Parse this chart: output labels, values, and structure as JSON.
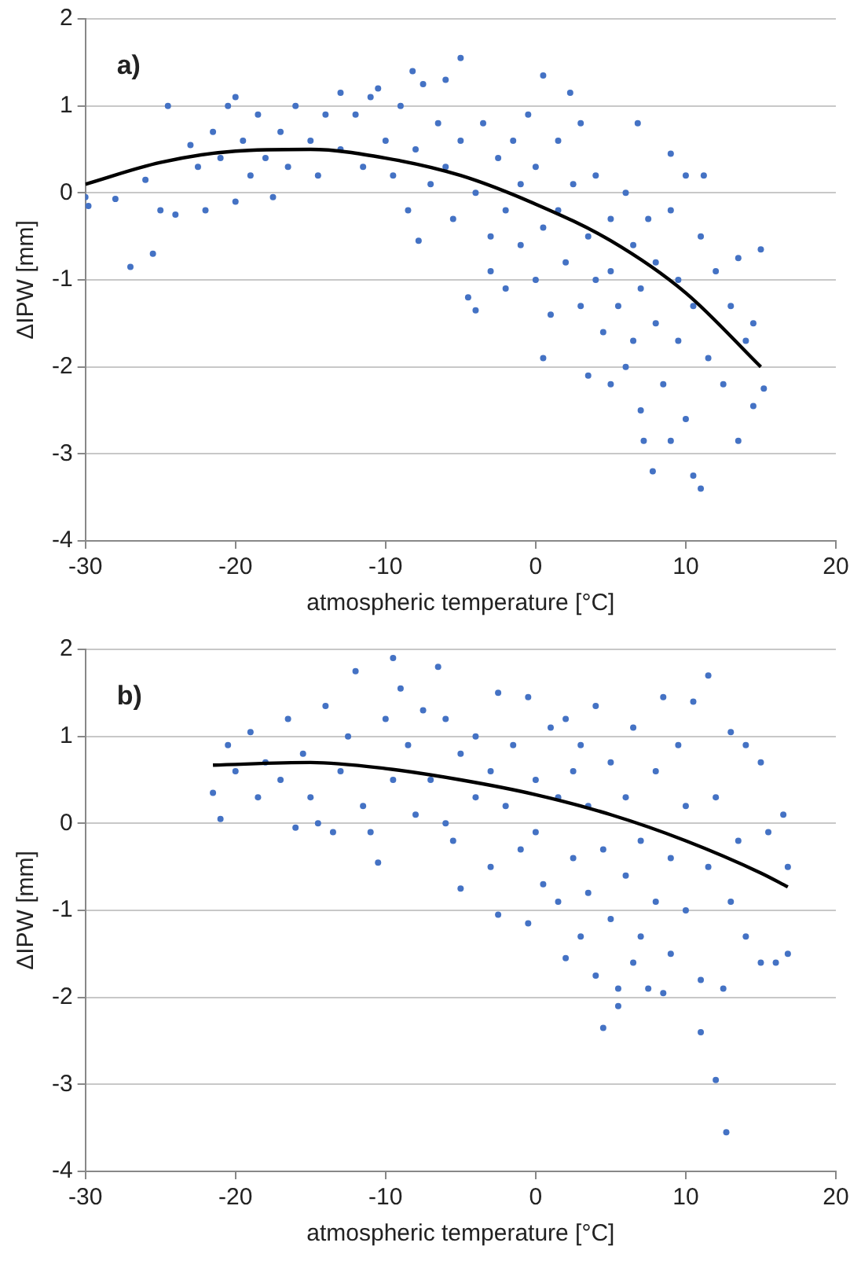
{
  "chart_data": [
    {
      "type": "scatter",
      "xlabel": "atmospheric temperature [°C]",
      "ylabel": "ΔIPW [mm]",
      "annotations": [
        "a)"
      ],
      "xlim": [
        -30,
        20
      ],
      "xticks": [
        -30,
        -20,
        -10,
        0,
        10,
        20
      ],
      "ylim": [
        -4,
        2
      ],
      "yticks": [
        -4,
        -3,
        -2,
        -1,
        0,
        1,
        2
      ],
      "grid": "y",
      "legend": false,
      "series": [
        {
          "marker": "circle",
          "color": "#4472c4",
          "x": [
            -30,
            -29.8,
            -28,
            -27,
            -26,
            -25.5,
            -25,
            -24.5,
            -24,
            -23,
            -22.5,
            -22,
            -21.5,
            -21,
            -20.5,
            -20,
            -20,
            -19.5,
            -19,
            -18.5,
            -18,
            -17.5,
            -17,
            -16.5,
            -16,
            -15,
            -14.5,
            -14,
            -13,
            -13,
            -12,
            -11.5,
            -11,
            -10.5,
            -10,
            -9.5,
            -9,
            -8.5,
            -8.2,
            -8,
            -7.8,
            -7.5,
            -7,
            -6.5,
            -6,
            -6,
            -5.5,
            -5,
            -5,
            -4.5,
            -4,
            -4,
            -3.5,
            -3,
            -3,
            -2.5,
            -2,
            -2,
            -1.5,
            -1,
            -1,
            -0.5,
            0,
            0,
            0.5,
            0.5,
            0.5,
            1,
            1.5,
            1.5,
            2,
            2.3,
            2.5,
            3,
            3,
            3.5,
            3.5,
            4,
            4,
            4.5,
            5,
            5,
            5,
            5.5,
            6,
            6,
            6.5,
            6.5,
            6.8,
            7,
            7,
            7.2,
            7.5,
            7.8,
            8,
            8,
            8.5,
            9,
            9,
            9,
            9.5,
            9.5,
            10,
            10,
            10.5,
            10.5,
            11,
            11,
            11.2,
            11.5,
            12,
            12.5,
            13,
            13.5,
            13.5,
            14,
            14.5,
            14.5,
            15,
            15.2
          ],
          "values": [
            -0.05,
            -0.15,
            -0.07,
            -0.85,
            0.15,
            -0.7,
            -0.2,
            1.0,
            -0.25,
            0.55,
            0.3,
            -0.2,
            0.7,
            0.4,
            1.0,
            1.1,
            -0.1,
            0.6,
            0.2,
            0.9,
            0.4,
            -0.05,
            0.7,
            0.3,
            1.0,
            0.6,
            0.2,
            0.9,
            1.15,
            0.5,
            0.9,
            0.3,
            1.1,
            1.2,
            0.6,
            0.2,
            1.0,
            -0.2,
            1.4,
            0.5,
            -0.55,
            1.25,
            0.1,
            0.8,
            1.3,
            0.3,
            -0.3,
            1.55,
            0.6,
            -1.2,
            0.0,
            -1.35,
            0.8,
            -0.5,
            -0.9,
            0.4,
            -0.2,
            -1.1,
            0.6,
            0.1,
            -0.6,
            0.9,
            0.3,
            -1.0,
            1.35,
            -0.4,
            -1.9,
            -1.4,
            0.6,
            -0.2,
            -0.8,
            1.15,
            0.1,
            -1.3,
            0.8,
            -0.5,
            -2.1,
            -1.0,
            0.2,
            -1.6,
            -0.3,
            -2.2,
            -0.9,
            -1.3,
            0.0,
            -2.0,
            -0.6,
            -1.7,
            0.8,
            -2.5,
            -1.1,
            -2.85,
            -0.3,
            -3.2,
            -1.5,
            -0.8,
            -2.2,
            -0.2,
            0.45,
            -2.85,
            -1.0,
            -1.7,
            -2.6,
            0.2,
            -3.25,
            -1.3,
            -3.4,
            -0.5,
            0.2,
            -1.9,
            -0.9,
            -2.2,
            -1.3,
            -2.85,
            -0.75,
            -1.7,
            -2.45,
            -1.5,
            -0.65,
            -2.25
          ]
        },
        {
          "type": "line",
          "marker": "none",
          "color": "#000000",
          "x": [
            -30,
            -25,
            -20,
            -15,
            -10,
            -5,
            0,
            5,
            10,
            15
          ],
          "values": [
            0.1,
            0.35,
            0.48,
            0.5,
            0.4,
            0.2,
            -0.13,
            -0.55,
            -1.15,
            -2.0
          ]
        }
      ]
    },
    {
      "type": "scatter",
      "xlabel": "atmospheric temperature [°C]",
      "ylabel": "ΔIPW [mm]",
      "annotations": [
        "b)"
      ],
      "xlim": [
        -30,
        20
      ],
      "xticks": [
        -30,
        -20,
        -10,
        0,
        10,
        20
      ],
      "ylim": [
        -4,
        2
      ],
      "yticks": [
        -4,
        -3,
        -2,
        -1,
        0,
        1,
        2
      ],
      "grid": "y",
      "legend": false,
      "series": [
        {
          "marker": "circle",
          "color": "#4472c4",
          "x": [
            -21.5,
            -21,
            -20.5,
            -20,
            -19,
            -18.5,
            -18,
            -17,
            -16.5,
            -16,
            -15.5,
            -15,
            -14.5,
            -14,
            -13.5,
            -13,
            -12.5,
            -12,
            -11.5,
            -11,
            -10.5,
            -10,
            -9.5,
            -9.5,
            -9,
            -8.5,
            -8,
            -7.5,
            -7,
            -6.5,
            -6,
            -6,
            -5.5,
            -5,
            -5,
            -4,
            -4,
            -3,
            -3,
            -2.5,
            -2.5,
            -2,
            -1.5,
            -1,
            -0.5,
            -0.5,
            0,
            0,
            0.5,
            1,
            1.5,
            1.5,
            2,
            2,
            2.5,
            2.5,
            3,
            3,
            3.5,
            3.5,
            4,
            4,
            4.5,
            4.5,
            5,
            5,
            5.5,
            5.5,
            6,
            6,
            6.5,
            6.5,
            7,
            7,
            7.5,
            8,
            8,
            8.5,
            8.5,
            9,
            9,
            9.5,
            10,
            10,
            10.5,
            11,
            11,
            11.5,
            11.5,
            12,
            12,
            12.5,
            12.7,
            13,
            13,
            13.5,
            14,
            14,
            15,
            15,
            15.5,
            16,
            16.5,
            16.8,
            16.8
          ],
          "values": [
            0.35,
            0.05,
            0.9,
            0.6,
            1.05,
            0.3,
            0.7,
            0.5,
            1.2,
            -0.05,
            0.8,
            0.3,
            0.0,
            1.35,
            -0.1,
            0.6,
            1.0,
            1.75,
            0.2,
            -0.1,
            -0.45,
            1.2,
            1.9,
            0.5,
            1.55,
            0.9,
            0.1,
            1.3,
            0.5,
            1.8,
            1.2,
            0.0,
            -0.2,
            0.8,
            -0.75,
            1.0,
            0.3,
            0.6,
            -0.5,
            1.5,
            -1.05,
            0.2,
            0.9,
            -0.3,
            1.45,
            -1.15,
            0.5,
            -0.1,
            -0.7,
            1.1,
            0.3,
            -0.9,
            1.2,
            -1.55,
            0.6,
            -0.4,
            -1.3,
            0.9,
            -0.8,
            0.2,
            1.35,
            -1.75,
            -2.35,
            -0.3,
            0.7,
            -1.1,
            -2.1,
            -1.9,
            0.3,
            -0.6,
            -1.6,
            1.1,
            -0.2,
            -1.3,
            -1.9,
            0.6,
            -0.9,
            1.45,
            -1.95,
            -0.4,
            -1.5,
            0.9,
            -1.0,
            0.2,
            1.4,
            -2.4,
            -1.8,
            1.7,
            -0.5,
            -2.95,
            0.3,
            -1.9,
            -3.55,
            1.05,
            -0.9,
            -0.2,
            0.9,
            -1.3,
            0.7,
            -1.6,
            -0.1,
            -1.6,
            0.1,
            -0.5,
            -1.5
          ]
        },
        {
          "type": "line",
          "marker": "none",
          "color": "#000000",
          "x": [
            -21.5,
            -15,
            -10,
            -5,
            0,
            5,
            10,
            15,
            16.8
          ],
          "values": [
            0.67,
            0.7,
            0.63,
            0.5,
            0.33,
            0.1,
            -0.2,
            -0.57,
            -0.73
          ]
        }
      ]
    }
  ]
}
